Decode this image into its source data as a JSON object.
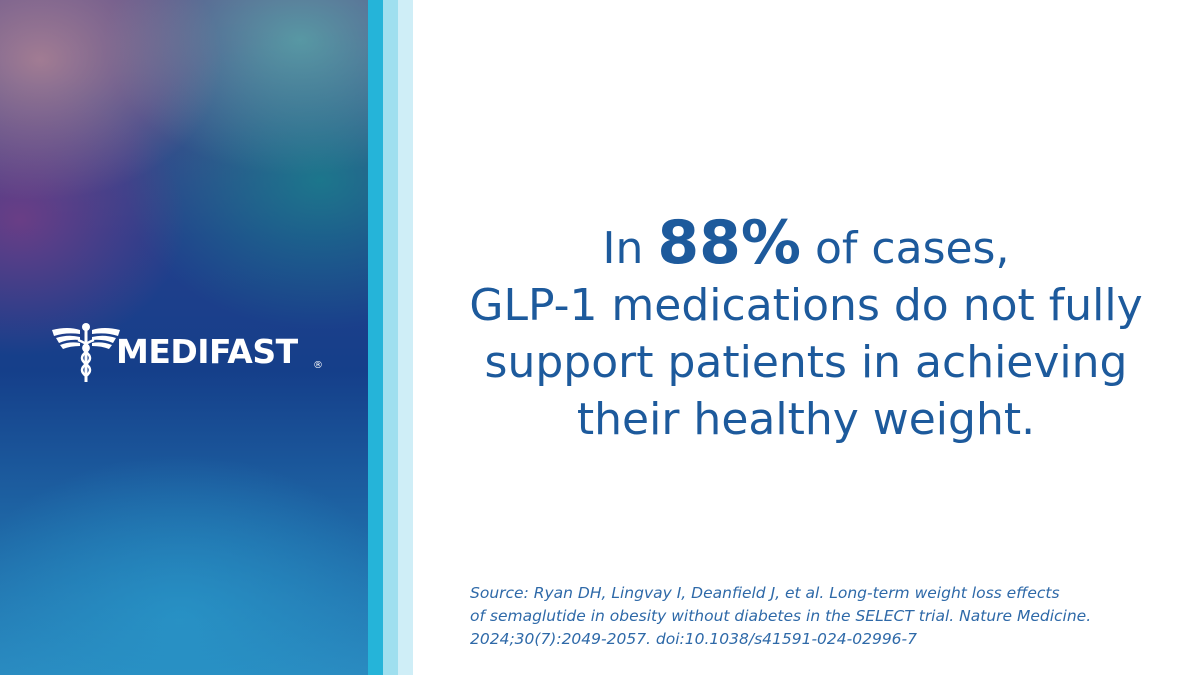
{
  "logo": {
    "name": "MEDIFAST",
    "mark": "®"
  },
  "headline": {
    "first_line": {
      "before": "In",
      "highlight": "88%",
      "after": "of cases,"
    },
    "lines": [
      "GLP-1 medications do not fully",
      "support patients in achieving",
      "their healthy weight."
    ]
  },
  "source": {
    "lines": [
      "Source: Ryan DH, Lingvay I, Deanfield J, et al. Long-term weight loss effects",
      "of semaglutide in obesity without diabetes in the SELECT trial. Nature Medicine.",
      "2024;30(7):2049-2057. doi:10.1038/s41591-024-02996-7"
    ]
  }
}
